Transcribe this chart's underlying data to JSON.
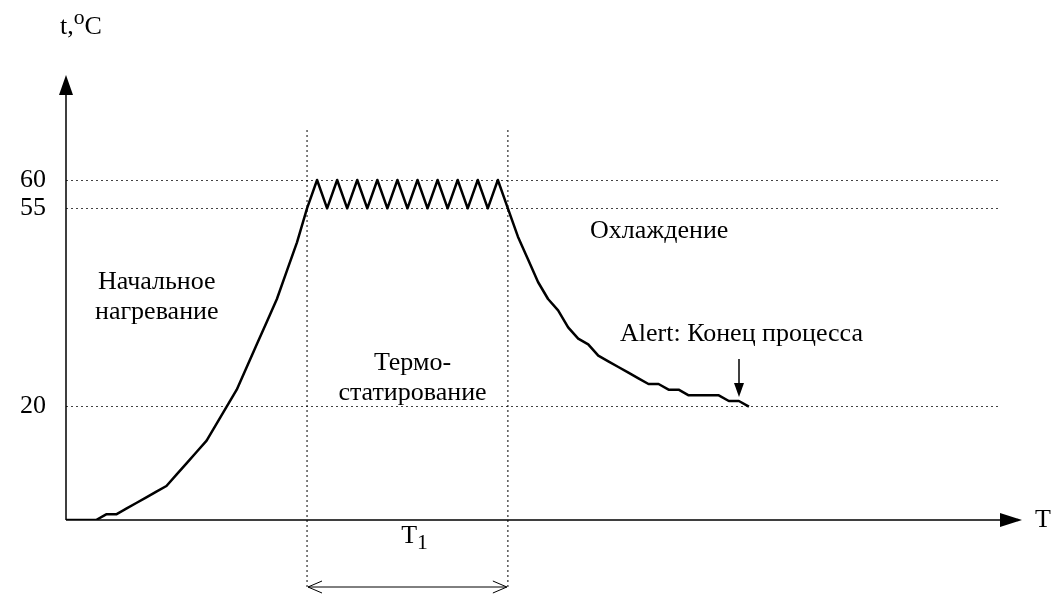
{
  "chart_data": {
    "type": "line",
    "xlabel": "T",
    "ylabel": "t,$^{o}$C",
    "categories": [
      null,
      null,
      null,
      null,
      null,
      null,
      null,
      null,
      null,
      null,
      null,
      null,
      null,
      null,
      null,
      null,
      null,
      null,
      null,
      null,
      null,
      null,
      null,
      null,
      null,
      null,
      null,
      null,
      null,
      null,
      null,
      null,
      null,
      null,
      null,
      null,
      null,
      null,
      null,
      null,
      null,
      null,
      null,
      null,
      null,
      null,
      null,
      null,
      null,
      null,
      null,
      null,
      null,
      null,
      null,
      null,
      null,
      null,
      null,
      null,
      null,
      null,
      null,
      null,
      null,
      null,
      null,
      null,
      null,
      null,
      null,
      null,
      null,
      null,
      null,
      null,
      null,
      null,
      null,
      null,
      null,
      null,
      null,
      null,
      null,
      null,
      null,
      null,
      null,
      null,
      null,
      null,
      null,
      null
    ],
    "values": [
      0,
      0,
      0,
      0,
      1,
      1,
      2,
      3,
      4,
      5,
      6,
      8,
      10,
      12,
      14,
      17,
      20,
      23,
      27,
      31,
      35,
      39,
      44,
      49,
      55,
      60,
      55,
      60,
      55,
      60,
      55,
      60,
      55,
      60,
      55,
      60,
      55,
      60,
      55,
      60,
      55,
      60,
      55,
      60,
      55,
      50,
      46,
      42,
      39,
      37,
      34,
      32,
      31,
      29,
      28,
      27,
      26,
      25,
      24,
      24,
      23,
      23,
      22,
      22,
      22,
      22,
      21,
      21,
      20,
      null,
      null,
      null,
      null,
      null,
      null,
      null,
      null,
      null,
      null,
      null,
      null,
      null,
      null,
      null,
      null,
      null,
      null,
      null,
      null,
      null,
      null,
      null,
      null,
      null
    ],
    "color": "#000000",
    "ylim": [
      0,
      75
    ],
    "yticks": [
      20,
      55,
      60
    ],
    "grid": "y",
    "tick_labels": "y",
    "marker": "none",
    "line_style": "solid",
    "annotations": [
      "Начальное\nнагревание",
      "Термо-\nстатирование",
      "Охлаждение",
      "Alert: Конец процесса",
      "T$_{1}$"
    ]
  }
}
